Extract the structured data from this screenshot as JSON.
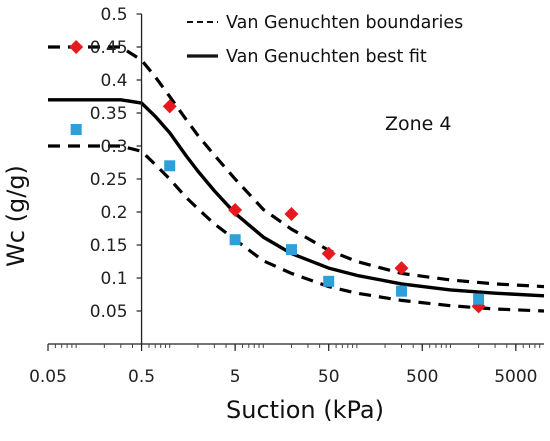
{
  "chart_data": {
    "type": "scatter",
    "xlabel": "Suction (kPa)",
    "ylabel": "Wc (g/g)",
    "x_scale": "log",
    "xlim": [
      0.05,
      10000
    ],
    "ylim": [
      0,
      0.5
    ],
    "x_ticks": [
      {
        "value": 0.05,
        "label": "0.05"
      },
      {
        "value": 0.5,
        "label": "0.5"
      },
      {
        "value": 5,
        "label": "5"
      },
      {
        "value": 50,
        "label": "50"
      },
      {
        "value": 500,
        "label": "500"
      },
      {
        "value": 5000,
        "label": "5000"
      }
    ],
    "y_ticks": [
      {
        "value": 0.05,
        "label": "0.05"
      },
      {
        "value": 0.1,
        "label": "0.1"
      },
      {
        "value": 0.15,
        "label": "0.15"
      },
      {
        "value": 0.2,
        "label": "0.2"
      },
      {
        "value": 0.25,
        "label": "0.25"
      },
      {
        "value": 0.3,
        "label": "0.3"
      },
      {
        "value": 0.35,
        "label": "0.35"
      },
      {
        "value": 0.4,
        "label": "0.4"
      },
      {
        "value": 0.45,
        "label": "0.45"
      },
      {
        "value": 0.5,
        "label": "0.5"
      }
    ],
    "grid": false,
    "legend_position": "top-right",
    "legend": [
      {
        "label": "Van Genuchten boundaries",
        "style": "dashed"
      },
      {
        "label": "Van Genuchten best fit",
        "style": "solid"
      }
    ],
    "annotation": "Zone 4",
    "series": [
      {
        "kind": "markers",
        "marker": "diamond",
        "color": "#e8191e",
        "x": [
          0.1,
          1,
          5,
          20,
          50,
          300,
          2000
        ],
        "y": [
          0.45,
          0.36,
          0.203,
          0.197,
          0.137,
          0.115,
          0.057
        ]
      },
      {
        "kind": "markers",
        "marker": "square",
        "color": "#2e9fd9",
        "x": [
          0.1,
          1,
          5,
          20,
          50,
          300,
          2000
        ],
        "y": [
          0.325,
          0.27,
          0.158,
          0.143,
          0.095,
          0.08,
          0.068
        ]
      },
      {
        "kind": "line",
        "style": "solid",
        "color": "#000000",
        "x": [
          0.05,
          0.3,
          0.5,
          0.7,
          1,
          1.5,
          2,
          3,
          5,
          10,
          20,
          50,
          100,
          300,
          1000,
          3000,
          10000
        ],
        "y": [
          0.37,
          0.37,
          0.365,
          0.345,
          0.32,
          0.285,
          0.262,
          0.232,
          0.198,
          0.162,
          0.137,
          0.115,
          0.104,
          0.091,
          0.082,
          0.077,
          0.073
        ]
      },
      {
        "kind": "line",
        "style": "dashed",
        "color": "#000000",
        "x": [
          0.05,
          0.3,
          0.5,
          0.7,
          1,
          1.5,
          2,
          3,
          5,
          10,
          20,
          50,
          100,
          300,
          1000,
          3000,
          10000
        ],
        "y": [
          0.45,
          0.45,
          0.43,
          0.405,
          0.375,
          0.34,
          0.316,
          0.286,
          0.25,
          0.204,
          0.174,
          0.142,
          0.125,
          0.107,
          0.097,
          0.091,
          0.087
        ]
      },
      {
        "kind": "line",
        "style": "dashed",
        "color": "#000000",
        "x": [
          0.05,
          0.3,
          0.5,
          0.7,
          1,
          1.5,
          2,
          3,
          5,
          10,
          20,
          50,
          100,
          300,
          1000,
          3000,
          10000
        ],
        "y": [
          0.3,
          0.3,
          0.292,
          0.272,
          0.25,
          0.222,
          0.205,
          0.182,
          0.158,
          0.126,
          0.107,
          0.087,
          0.077,
          0.066,
          0.058,
          0.053,
          0.05
        ]
      }
    ]
  }
}
